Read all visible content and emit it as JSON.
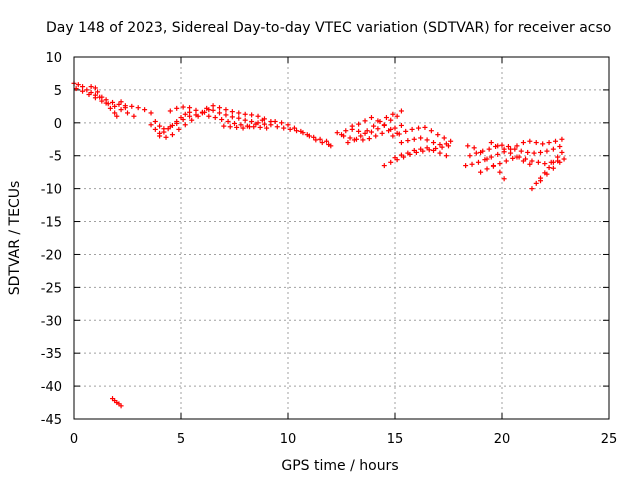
{
  "chart_data": {
    "type": "scatter",
    "title": "Day 148 of 2023, Sidereal Day-to-day VTEC variation (SDTVAR) for receiver acso",
    "xlabel": "GPS time / hours",
    "ylabel": "SDTVAR / TECUs",
    "xlim": [
      0,
      25
    ],
    "ylim": [
      -45,
      10
    ],
    "xticks": [
      0,
      5,
      10,
      15,
      20,
      25
    ],
    "yticks": [
      10,
      5,
      0,
      -5,
      -10,
      -15,
      -20,
      -25,
      -30,
      -35,
      -40,
      -45
    ],
    "grid": true,
    "legend": "none",
    "marker": "plus",
    "color": "#ff0000",
    "series": [
      {
        "name": "SDTVAR",
        "points": [
          [
            0.0,
            6.0
          ],
          [
            0.2,
            5.8
          ],
          [
            0.4,
            5.5
          ],
          [
            0.6,
            5.0
          ],
          [
            0.8,
            4.6
          ],
          [
            1.0,
            4.2
          ],
          [
            1.2,
            3.9
          ],
          [
            1.5,
            3.5
          ],
          [
            1.8,
            3.1
          ],
          [
            2.1,
            2.8
          ],
          [
            2.4,
            2.6
          ],
          [
            2.7,
            2.5
          ],
          [
            3.0,
            2.3
          ],
          [
            3.3,
            2.0
          ],
          [
            3.6,
            1.5
          ],
          [
            0.1,
            5.2
          ],
          [
            0.4,
            4.8
          ],
          [
            0.7,
            4.3
          ],
          [
            1.0,
            3.8
          ],
          [
            1.3,
            3.3
          ],
          [
            1.6,
            2.9
          ],
          [
            1.9,
            2.5
          ],
          [
            2.2,
            2.0
          ],
          [
            2.5,
            1.5
          ],
          [
            2.8,
            1.0
          ],
          [
            0.8,
            5.5
          ],
          [
            1.0,
            5.3
          ],
          [
            1.1,
            4.7
          ],
          [
            1.3,
            3.9
          ],
          [
            1.5,
            3.0
          ],
          [
            1.7,
            2.2
          ],
          [
            1.9,
            1.5
          ],
          [
            2.0,
            1.0
          ],
          [
            2.2,
            3.2
          ],
          [
            2.4,
            2.3
          ],
          [
            3.6,
            -0.3
          ],
          [
            3.8,
            -1.0
          ],
          [
            4.0,
            -1.6
          ],
          [
            4.2,
            -1.4
          ],
          [
            4.4,
            -0.9
          ],
          [
            4.6,
            -0.4
          ],
          [
            4.8,
            0.2
          ],
          [
            5.0,
            0.8
          ],
          [
            5.2,
            1.3
          ],
          [
            5.4,
            1.6
          ],
          [
            3.8,
            0.2
          ],
          [
            4.0,
            -0.5
          ],
          [
            4.2,
            -0.9
          ],
          [
            4.5,
            -0.6
          ],
          [
            4.8,
            -0.1
          ],
          [
            5.1,
            0.5
          ],
          [
            5.4,
            1.0
          ],
          [
            5.7,
            1.2
          ],
          [
            6.0,
            1.5
          ],
          [
            6.3,
            2.0
          ],
          [
            4.0,
            -2.0
          ],
          [
            4.3,
            -2.2
          ],
          [
            4.6,
            -1.8
          ],
          [
            4.9,
            -1.0
          ],
          [
            5.2,
            -0.3
          ],
          [
            5.5,
            0.4
          ],
          [
            5.8,
            1.0
          ],
          [
            6.1,
            1.6
          ],
          [
            4.5,
            1.8
          ],
          [
            4.8,
            2.2
          ],
          [
            5.1,
            2.4
          ],
          [
            5.4,
            2.3
          ],
          [
            5.7,
            1.9
          ],
          [
            6.0,
            1.6
          ],
          [
            6.2,
            2.2
          ],
          [
            6.5,
            1.9
          ],
          [
            6.8,
            1.5
          ],
          [
            7.1,
            1.2
          ],
          [
            7.4,
            0.9
          ],
          [
            7.7,
            0.7
          ],
          [
            8.0,
            0.4
          ],
          [
            8.3,
            0.2
          ],
          [
            8.6,
            0.0
          ],
          [
            8.9,
            -0.2
          ],
          [
            9.2,
            -0.3
          ],
          [
            6.3,
            1.0
          ],
          [
            6.6,
            0.8
          ],
          [
            6.9,
            0.5
          ],
          [
            7.2,
            0.2
          ],
          [
            7.5,
            -0.1
          ],
          [
            7.8,
            -0.3
          ],
          [
            8.1,
            -0.5
          ],
          [
            8.4,
            -0.6
          ],
          [
            8.7,
            -0.7
          ],
          [
            9.0,
            -0.8
          ],
          [
            6.5,
            2.6
          ],
          [
            6.8,
            2.3
          ],
          [
            7.1,
            2.0
          ],
          [
            7.4,
            1.7
          ],
          [
            7.7,
            1.5
          ],
          [
            8.0,
            1.3
          ],
          [
            8.3,
            1.2
          ],
          [
            8.6,
            1.0
          ],
          [
            8.9,
            0.6
          ],
          [
            9.2,
            0.2
          ],
          [
            7.0,
            -0.5
          ],
          [
            7.3,
            -0.6
          ],
          [
            7.6,
            -0.7
          ],
          [
            7.9,
            -0.8
          ],
          [
            8.2,
            -0.6
          ],
          [
            8.5,
            -0.2
          ],
          [
            8.8,
            0.4
          ],
          [
            9.4,
            0.2
          ],
          [
            9.7,
            0.0
          ],
          [
            10.0,
            -0.3
          ],
          [
            10.3,
            -0.8
          ],
          [
            10.6,
            -1.3
          ],
          [
            10.9,
            -1.8
          ],
          [
            11.2,
            -2.2
          ],
          [
            11.5,
            -2.5
          ],
          [
            11.8,
            -2.8
          ],
          [
            12.0,
            -3.5
          ],
          [
            9.5,
            -0.6
          ],
          [
            9.8,
            -0.8
          ],
          [
            10.1,
            -1.0
          ],
          [
            10.4,
            -1.2
          ],
          [
            10.7,
            -1.5
          ],
          [
            11.0,
            -2.0
          ],
          [
            11.3,
            -2.6
          ],
          [
            11.6,
            -3.0
          ],
          [
            11.9,
            -3.3
          ],
          [
            12.3,
            -1.5
          ],
          [
            12.5,
            -1.8
          ],
          [
            12.6,
            -2.0
          ],
          [
            12.9,
            -2.3
          ],
          [
            13.2,
            -2.5
          ],
          [
            13.5,
            -2.6
          ],
          [
            13.8,
            -2.4
          ],
          [
            14.1,
            -2.0
          ],
          [
            14.4,
            -1.6
          ],
          [
            14.7,
            -1.2
          ],
          [
            15.0,
            -0.8
          ],
          [
            15.3,
            -0.4
          ],
          [
            12.7,
            -1.2
          ],
          [
            13.0,
            -1.0
          ],
          [
            13.3,
            -1.3
          ],
          [
            13.6,
            -1.6
          ],
          [
            13.9,
            -1.4
          ],
          [
            14.2,
            -0.9
          ],
          [
            14.5,
            -0.3
          ],
          [
            14.8,
            0.4
          ],
          [
            15.1,
            1.0
          ],
          [
            15.3,
            1.8
          ],
          [
            12.8,
            -3.0
          ],
          [
            13.1,
            -2.6
          ],
          [
            13.4,
            -2.0
          ],
          [
            13.7,
            -1.2
          ],
          [
            14.0,
            -0.5
          ],
          [
            14.3,
            0.2
          ],
          [
            14.6,
            0.8
          ],
          [
            14.9,
            1.3
          ],
          [
            13.0,
            -0.5
          ],
          [
            13.3,
            -0.2
          ],
          [
            13.6,
            0.3
          ],
          [
            13.9,
            0.8
          ],
          [
            14.2,
            0.3
          ],
          [
            14.5,
            -0.4
          ],
          [
            14.8,
            -1.0
          ],
          [
            15.1,
            -1.6
          ],
          [
            14.5,
            -6.5
          ],
          [
            14.8,
            -6.0
          ],
          [
            15.1,
            -5.6
          ],
          [
            15.4,
            -5.2
          ],
          [
            15.7,
            -4.8
          ],
          [
            16.0,
            -4.5
          ],
          [
            16.3,
            -4.3
          ],
          [
            16.6,
            -4.1
          ],
          [
            16.9,
            -3.9
          ],
          [
            17.2,
            -3.7
          ],
          [
            17.5,
            -3.5
          ],
          [
            15.0,
            -5.3
          ],
          [
            15.3,
            -4.9
          ],
          [
            15.6,
            -4.6
          ],
          [
            15.9,
            -4.2
          ],
          [
            16.2,
            -4.0
          ],
          [
            16.5,
            -3.8
          ],
          [
            16.8,
            -4.2
          ],
          [
            17.1,
            -4.6
          ],
          [
            17.4,
            -5.0
          ],
          [
            14.9,
            -2.0
          ],
          [
            15.2,
            -1.7
          ],
          [
            15.5,
            -1.3
          ],
          [
            15.8,
            -1.0
          ],
          [
            16.1,
            -0.8
          ],
          [
            16.4,
            -0.7
          ],
          [
            16.7,
            -1.2
          ],
          [
            17.0,
            -1.8
          ],
          [
            17.3,
            -2.3
          ],
          [
            17.6,
            -2.8
          ],
          [
            15.3,
            -3.0
          ],
          [
            15.6,
            -2.7
          ],
          [
            15.9,
            -2.5
          ],
          [
            16.2,
            -2.3
          ],
          [
            16.5,
            -2.6
          ],
          [
            16.8,
            -3.0
          ],
          [
            17.1,
            -3.3
          ],
          [
            17.4,
            -3.2
          ],
          [
            18.4,
            -3.5
          ],
          [
            18.7,
            -3.8
          ],
          [
            19.0,
            -4.5
          ],
          [
            19.3,
            -5.5
          ],
          [
            19.6,
            -6.5
          ],
          [
            19.9,
            -7.5
          ],
          [
            20.1,
            -8.5
          ],
          [
            18.3,
            -6.5
          ],
          [
            18.6,
            -6.3
          ],
          [
            18.9,
            -6.0
          ],
          [
            19.2,
            -5.6
          ],
          [
            19.5,
            -5.2
          ],
          [
            19.8,
            -4.8
          ],
          [
            20.1,
            -4.4
          ],
          [
            20.4,
            -4.0
          ],
          [
            20.7,
            -3.5
          ],
          [
            21.0,
            -3.0
          ],
          [
            21.3,
            -2.8
          ],
          [
            21.6,
            -3.0
          ],
          [
            21.9,
            -3.2
          ],
          [
            22.2,
            -3.0
          ],
          [
            22.5,
            -2.8
          ],
          [
            22.8,
            -2.5
          ],
          [
            18.5,
            -5.0
          ],
          [
            18.8,
            -4.6
          ],
          [
            19.1,
            -4.3
          ],
          [
            19.4,
            -4.0
          ],
          [
            19.7,
            -3.6
          ],
          [
            20.0,
            -3.4
          ],
          [
            20.3,
            -3.6
          ],
          [
            20.6,
            -4.0
          ],
          [
            20.9,
            -4.3
          ],
          [
            21.2,
            -4.5
          ],
          [
            21.5,
            -4.6
          ],
          [
            21.8,
            -4.5
          ],
          [
            22.1,
            -4.3
          ],
          [
            22.4,
            -4.0
          ],
          [
            22.7,
            -3.6
          ],
          [
            19.0,
            -7.5
          ],
          [
            19.3,
            -7.0
          ],
          [
            19.6,
            -6.6
          ],
          [
            19.9,
            -6.2
          ],
          [
            20.2,
            -5.8
          ],
          [
            20.5,
            -5.4
          ],
          [
            20.8,
            -5.2
          ],
          [
            21.1,
            -5.5
          ],
          [
            21.4,
            -5.8
          ],
          [
            21.7,
            -6.0
          ],
          [
            22.0,
            -6.2
          ],
          [
            22.3,
            -6.0
          ],
          [
            22.6,
            -5.8
          ],
          [
            22.9,
            -5.5
          ],
          [
            19.5,
            -3.0
          ],
          [
            19.8,
            -3.5
          ],
          [
            20.1,
            -4.0
          ],
          [
            20.4,
            -4.6
          ],
          [
            20.7,
            -5.2
          ],
          [
            21.0,
            -5.8
          ],
          [
            21.3,
            -6.3
          ],
          [
            21.4,
            -10.0
          ],
          [
            21.6,
            -9.2
          ],
          [
            21.8,
            -8.4
          ],
          [
            22.0,
            -7.6
          ],
          [
            22.2,
            -6.8
          ],
          [
            22.4,
            -6.0
          ],
          [
            22.6,
            -5.2
          ],
          [
            22.8,
            -4.5
          ],
          [
            21.8,
            -8.8
          ],
          [
            22.1,
            -7.8
          ],
          [
            22.4,
            -6.9
          ],
          [
            22.7,
            -6.0
          ],
          [
            1.8,
            -41.9
          ],
          [
            1.9,
            -42.2
          ],
          [
            2.0,
            -42.5
          ],
          [
            2.1,
            -42.7
          ],
          [
            2.2,
            -43.0
          ]
        ]
      }
    ]
  }
}
